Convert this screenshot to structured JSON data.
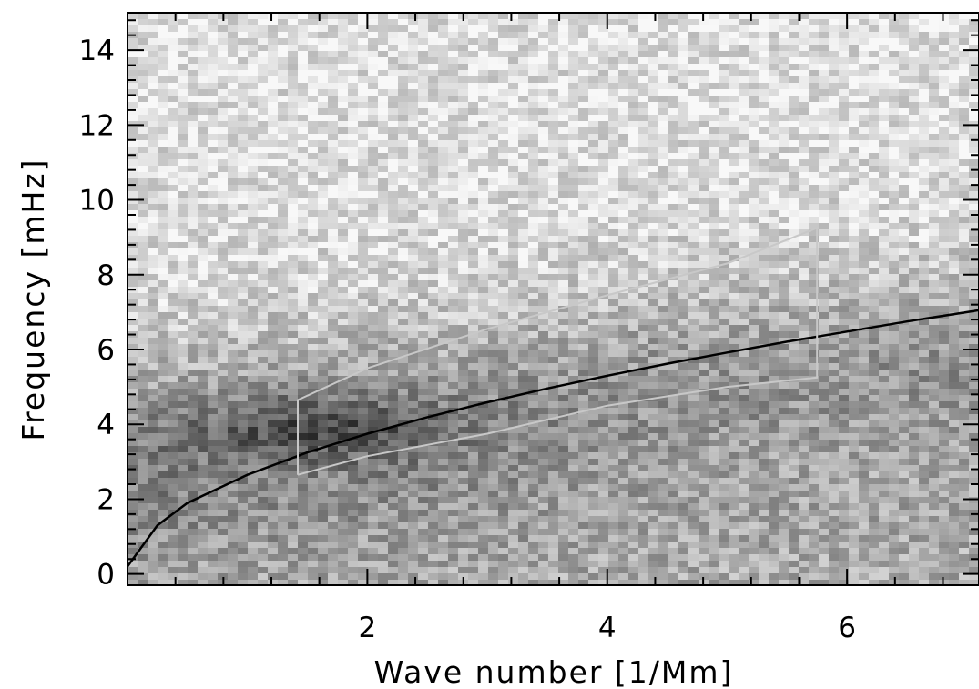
{
  "chart_data": {
    "type": "heatmap",
    "title": "",
    "xlabel": "Wave number [1/Mm]",
    "ylabel": "Frequency [mHz]",
    "xlim": [
      0,
      7.1
    ],
    "ylim": [
      -0.3,
      15
    ],
    "x_ticks": [
      2,
      4,
      6
    ],
    "x_tick_labels": [
      "2",
      "4",
      "6"
    ],
    "y_ticks": [
      0,
      2,
      4,
      6,
      8,
      10,
      12,
      14
    ],
    "y_tick_labels": [
      "0",
      "2",
      "4",
      "6",
      "8",
      "10",
      "12",
      "14"
    ],
    "x_minor_step": 0.4,
    "y_minor_step": 0.4,
    "colormap": "inverted grayscale (dark = high power)",
    "power_ridge": {
      "description": "dark power concentration along low-frequency band",
      "peak_center": [
        1.6,
        3.9
      ],
      "ridge_points": [
        [
          0.3,
          3.5
        ],
        [
          1.0,
          3.8
        ],
        [
          1.6,
          4.0
        ],
        [
          2.5,
          4.2
        ],
        [
          3.5,
          4.6
        ],
        [
          4.5,
          5.0
        ],
        [
          5.5,
          5.2
        ],
        [
          7.0,
          5.5
        ]
      ]
    },
    "series": [
      {
        "type": "line",
        "color": "#000000",
        "x": [
          0.0,
          0.25,
          0.5,
          1.0,
          1.5,
          2.0,
          2.5,
          3.0,
          3.5,
          4.0,
          4.5,
          5.0,
          5.5,
          6.0,
          6.5,
          7.1
        ],
        "y": [
          0.2,
          1.3,
          1.9,
          2.65,
          3.25,
          3.75,
          4.19,
          4.59,
          4.96,
          5.3,
          5.62,
          5.92,
          6.21,
          6.48,
          6.75,
          7.05
        ]
      }
    ],
    "annotations": [
      {
        "type": "polygon",
        "color": "#c8c8c8",
        "x": [
          1.42,
          1.42,
          2.0,
          3.0,
          4.0,
          5.0,
          5.75,
          5.75,
          5.0,
          4.0,
          3.0,
          2.0,
          1.42
        ],
        "y": [
          2.65,
          4.65,
          5.5,
          6.55,
          7.45,
          8.3,
          9.25,
          5.25,
          5.0,
          4.5,
          3.75,
          3.15,
          2.65
        ]
      }
    ]
  }
}
